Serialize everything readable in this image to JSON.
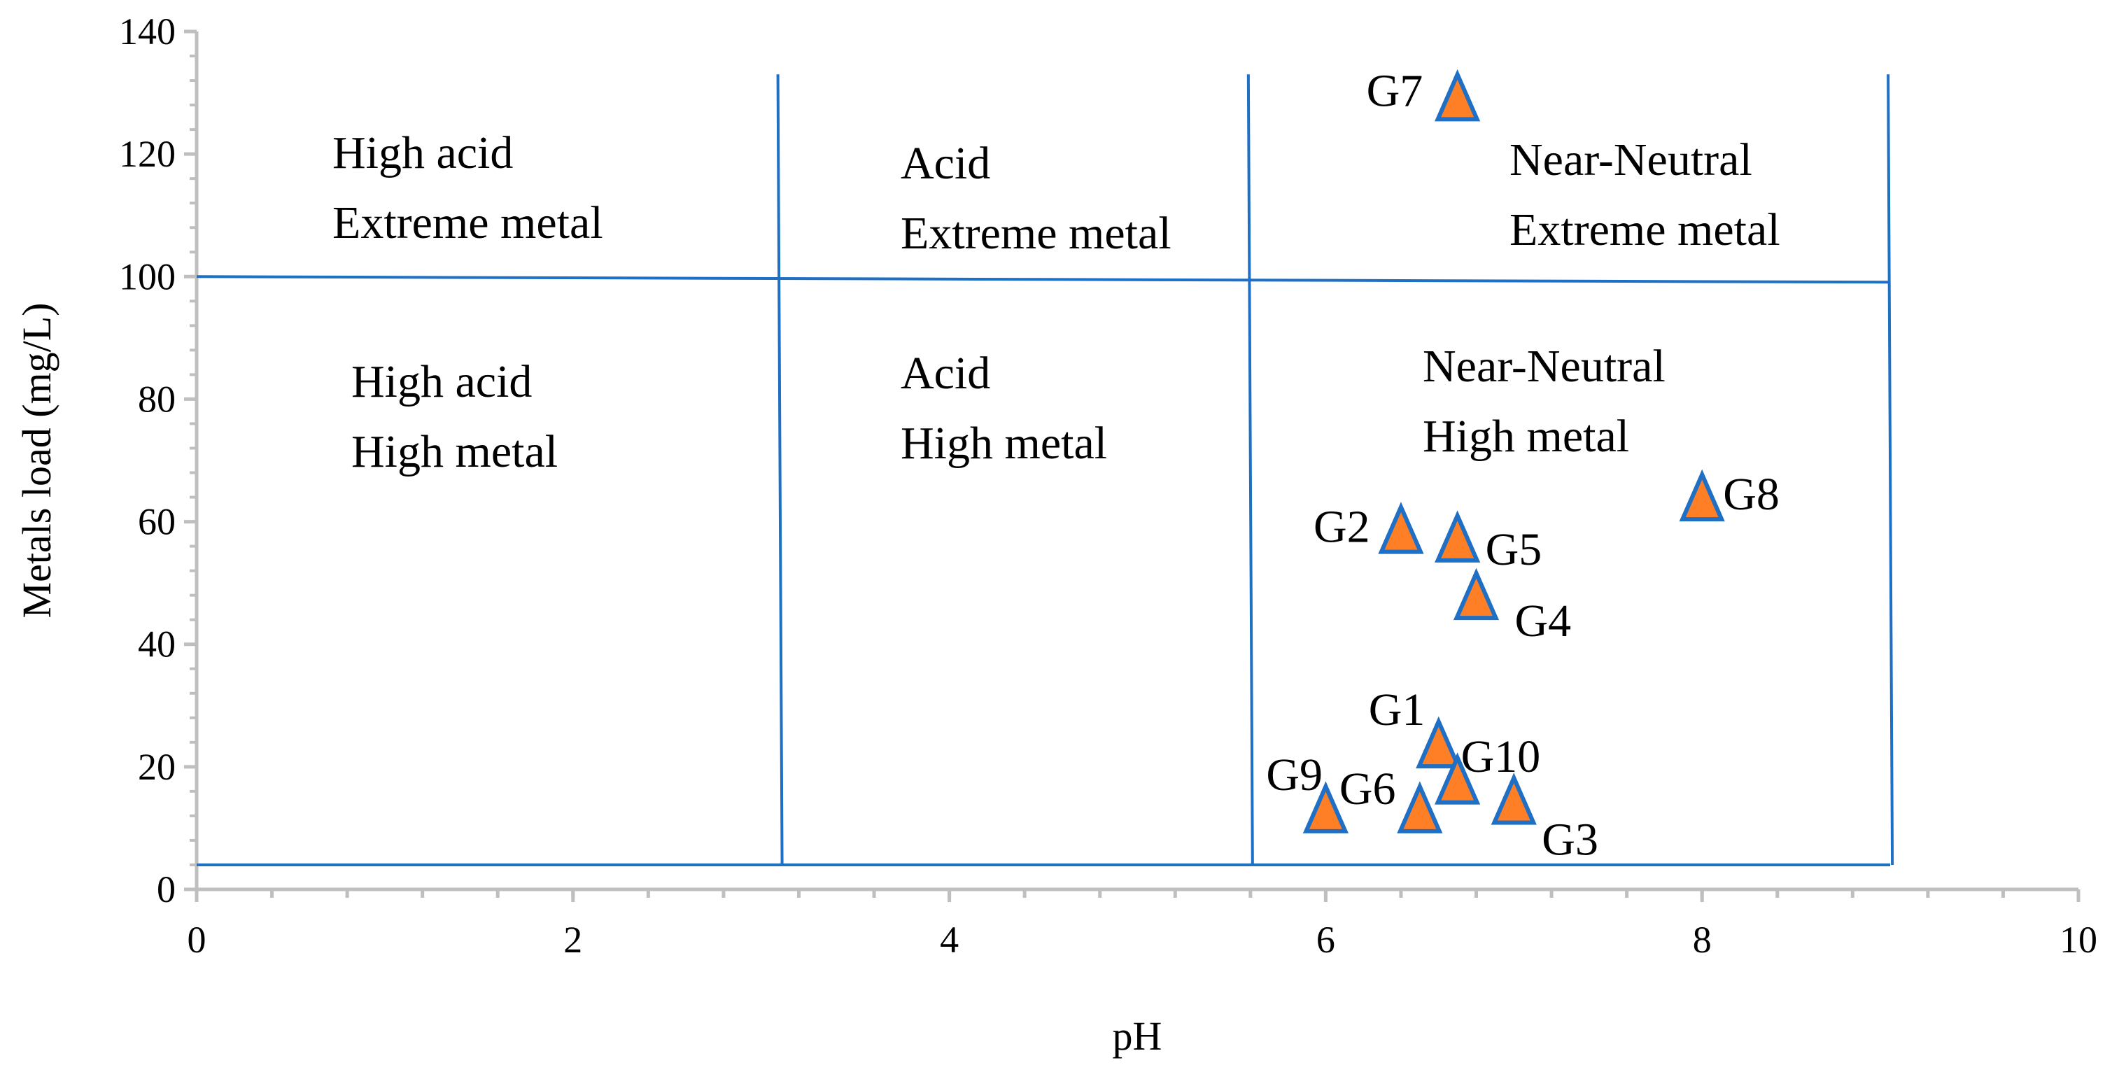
{
  "chart_data": {
    "type": "scatter",
    "xlabel": "pH",
    "ylabel": "Metals load (mg/L)",
    "xlim": [
      0,
      10
    ],
    "ylim": [
      0,
      140
    ],
    "xticks": [
      "0",
      "2",
      "4",
      "6",
      "8",
      "10"
    ],
    "yticks": [
      "0",
      "20",
      "40",
      "60",
      "80",
      "100",
      "120",
      "140"
    ],
    "grid": false,
    "marker": "triangle",
    "colors": {
      "marker_fill": "#FF7F27",
      "marker_edge": "#1F6FC4",
      "boundary": "#1F6FC4",
      "axis": "#BFBFBF"
    },
    "points": [
      {
        "label": "G1",
        "x": 6.6,
        "y": 23.4
      },
      {
        "label": "G2",
        "x": 6.4,
        "y": 58.4
      },
      {
        "label": "G3",
        "x": 7.0,
        "y": 14.2
      },
      {
        "label": "G4",
        "x": 6.8,
        "y": 47.6
      },
      {
        "label": "G5",
        "x": 6.7,
        "y": 57.0
      },
      {
        "label": "G6",
        "x": 6.5,
        "y": 12.8
      },
      {
        "label": "G7",
        "x": 6.7,
        "y": 129.0
      },
      {
        "label": "G8",
        "x": 8.0,
        "y": 63.7
      },
      {
        "label": "G9",
        "x": 6.0,
        "y": 12.8
      },
      {
        "label": "G10",
        "x": 6.7,
        "y": 17.5
      }
    ],
    "boundaries": {
      "vertical_ph": [
        3.1,
        5.6,
        9.0
      ],
      "horizontal_metal": [
        100,
        4
      ]
    },
    "regions": [
      {
        "line1": "High acid",
        "line2": "Extreme metal"
      },
      {
        "line1": "Acid",
        "line2": "Extreme metal"
      },
      {
        "line1": "Near-Neutral",
        "line2": "Extreme metal"
      },
      {
        "line1": "High acid",
        "line2": "High metal"
      },
      {
        "line1": "Acid",
        "line2": "High metal"
      },
      {
        "line1": "Near-Neutral",
        "line2": "High metal"
      }
    ]
  }
}
